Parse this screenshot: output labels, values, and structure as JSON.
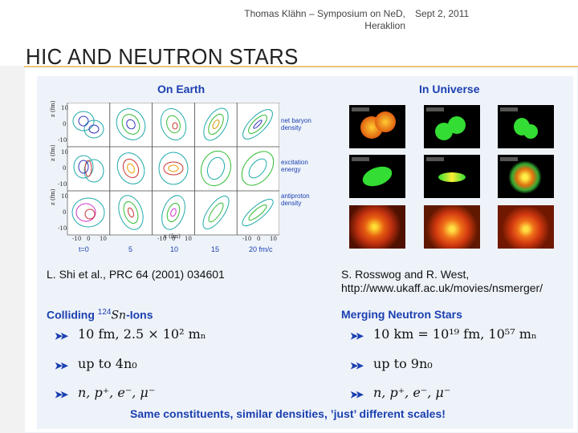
{
  "header": {
    "left": "Thomas Klähn – Symposium on NeD, Heraklion",
    "right": "Sept 2, 2011"
  },
  "slide_title": "HIC AND NEUTRON STARS",
  "left_col": {
    "heading": "On Earth",
    "row_labels": [
      [
        "net baryon",
        "density"
      ],
      [
        "excitation",
        "energy"
      ],
      [
        "antiproton",
        "density"
      ]
    ],
    "time_labels": [
      "t=0",
      "5",
      "10",
      "15",
      "20 fm/c"
    ],
    "citation": "L. Shi et al., PRC 64 (2001) 034601",
    "subtitle_pre": "Colliding ",
    "subtitle_iso_mass": "124",
    "subtitle_iso_sym": "Sn",
    "subtitle_post": "-Ions",
    "bullets": [
      "10 fm, 2.5 × 10² mₙ",
      "up to 4n₀",
      "n, p⁺, e⁻, μ⁻"
    ]
  },
  "right_col": {
    "heading": "In Universe",
    "citation_line1": "S. Rosswog and R. West,",
    "citation_line2": "http://www.ukaff.ac.uk/movies/nsmerger/",
    "subtitle": "Merging Neutron Stars",
    "bullets": [
      "10 km = 10¹⁹ fm, 10⁵⁷ mₙ",
      "up to 9n₀",
      "n, p⁺, e⁻, μ⁻"
    ]
  },
  "axis": {
    "y_unit": "z (fm)",
    "x_unit": "x (fm)",
    "ticks_y": [
      "10",
      "0",
      "-10"
    ],
    "ticks_x": [
      "-10",
      "0",
      "10"
    ]
  },
  "summary": "Same constituents, similar densities, ’just’ different scales!",
  "colors": {
    "accent_blue": "#1a3fb0",
    "rule": "#f0c878",
    "panel_bg": "#eef3fa"
  }
}
